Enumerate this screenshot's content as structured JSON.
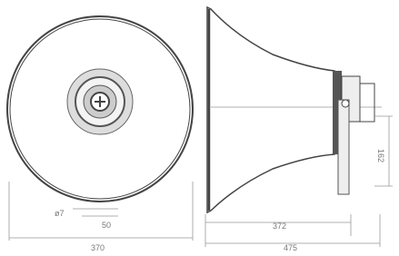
{
  "labels": {
    "mount_hole": "ø7",
    "inner_width": "50",
    "diameter": "370",
    "horn_length": "372",
    "total_length": "475",
    "height": "162"
  }
}
